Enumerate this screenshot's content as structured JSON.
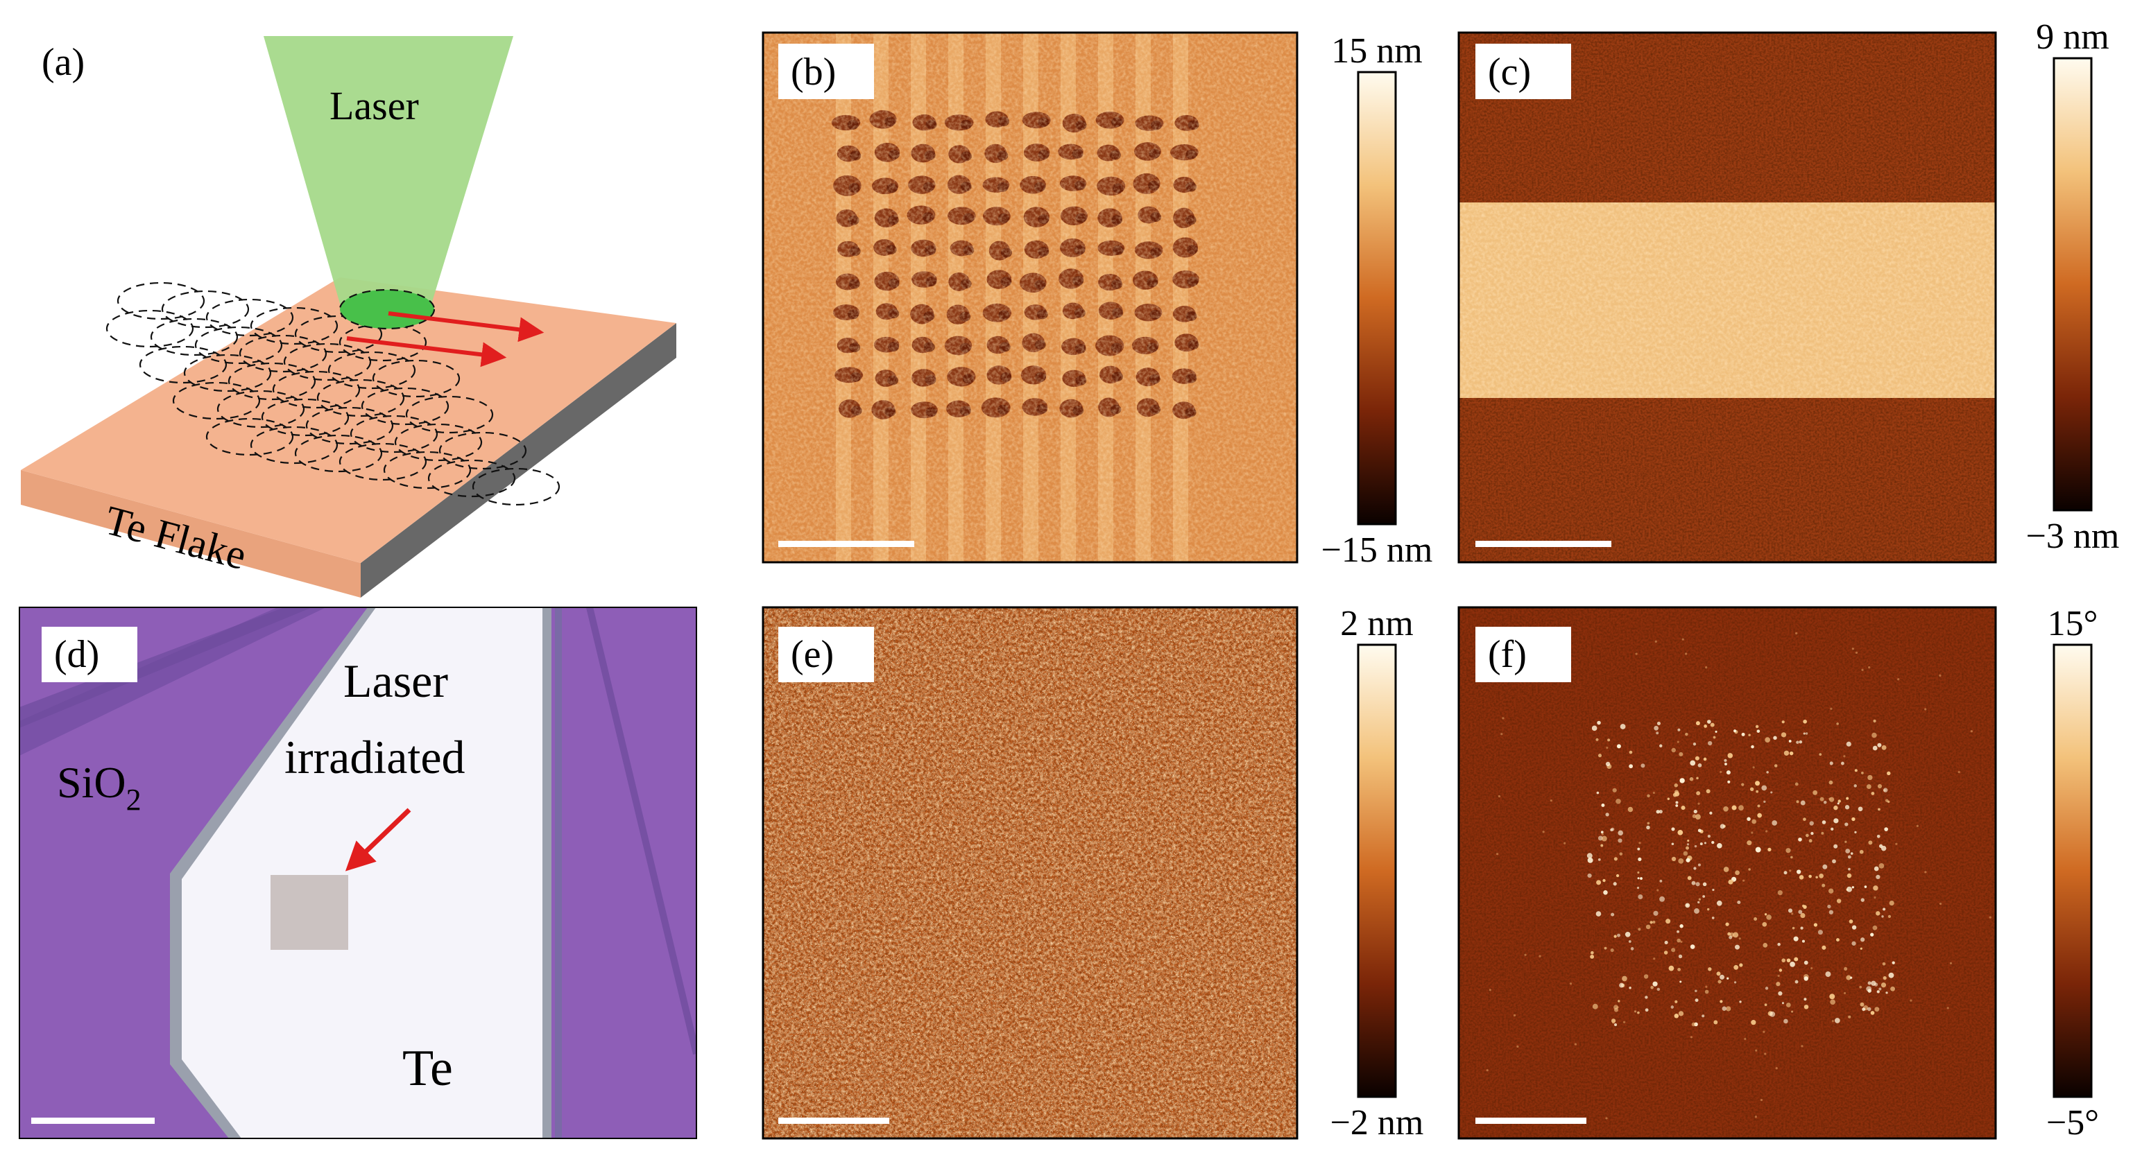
{
  "panels": {
    "a": {
      "label": "(a)",
      "laser_text": "Laser",
      "flake_text": "Te Flake"
    },
    "b": {
      "label": "(b)",
      "cbar_top": "15 nm",
      "cbar_bottom": "−15 nm"
    },
    "c": {
      "label": "(c)",
      "cbar_top": "9 nm",
      "cbar_bottom": "−3 nm"
    },
    "d": {
      "label": "(d)",
      "sio2_text": "SiO",
      "sio2_sub": "2",
      "laser_line1": "Laser",
      "laser_line2": "irradiated",
      "te_text": "Te"
    },
    "e": {
      "label": "(e)",
      "cbar_top": "2 nm",
      "cbar_bottom": "−2 nm"
    },
    "f": {
      "label": "(f)",
      "cbar_top": "15°",
      "cbar_bottom": "−5°"
    }
  },
  "colors": {
    "afm_dark": "#1a0500",
    "afm_mid": "#a23b0c",
    "afm_light": "#e89a52",
    "afm_white": "#fff9ec",
    "laser_green": "#9fd77e",
    "flake_top": "#f2b08a",
    "flake_side": "#6a6a6a",
    "sio2_purple": "#8f5fb8",
    "te_white": "#f4f3fa",
    "annotation_red": "#e11e1e"
  }
}
